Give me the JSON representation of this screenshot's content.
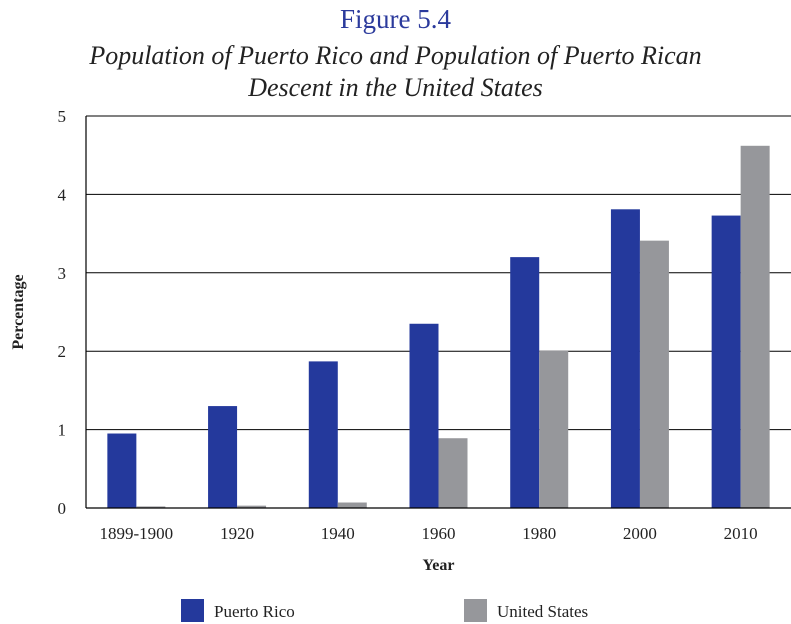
{
  "figure_label": "Figure 5.4",
  "title_line1": "Population of Puerto Rico and Population of Puerto Rican",
  "title_line2": "Descent in the United States",
  "chart_data": {
    "type": "bar",
    "categories": [
      "1899-1900",
      "1920",
      "1940",
      "1960",
      "1980",
      "2000",
      "2010"
    ],
    "series": [
      {
        "name": "Puerto Rico",
        "color": "#24399c",
        "values": [
          0.95,
          1.3,
          1.87,
          2.35,
          3.2,
          3.81,
          3.73
        ]
      },
      {
        "name": "United States",
        "color": "#96979b",
        "values": [
          0.02,
          0.03,
          0.07,
          0.89,
          2.01,
          3.41,
          4.62
        ]
      }
    ],
    "xlabel": "Year",
    "ylabel": "Percentage",
    "ylim": [
      0,
      5
    ],
    "yticks": [
      0,
      1,
      2,
      3,
      4,
      5
    ],
    "grid": true,
    "legend_position": "bottom"
  }
}
